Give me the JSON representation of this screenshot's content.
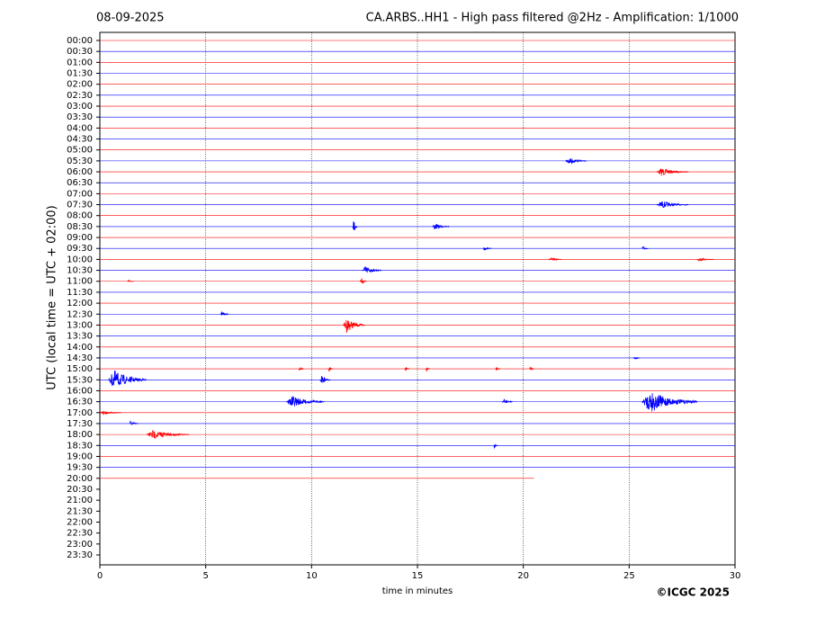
{
  "chart_data": {
    "type": "helicorder",
    "date": "08-09-2025",
    "title": "CA.ARBS..HH1 - High pass filtered @2Hz - Amplification: 1/1000",
    "ylabel": "UTC (local time = UTC + 02:00)",
    "xlabel": "time in minutes",
    "copyright": "©ICGC 2025",
    "rows": [
      "00:00",
      "00:30",
      "01:00",
      "01:30",
      "02:00",
      "02:30",
      "03:00",
      "03:30",
      "04:00",
      "04:30",
      "05:00",
      "05:30",
      "06:00",
      "06:30",
      "07:00",
      "07:30",
      "08:00",
      "08:30",
      "09:00",
      "09:30",
      "10:00",
      "10:30",
      "11:00",
      "11:30",
      "12:00",
      "12:30",
      "13:00",
      "13:30",
      "14:00",
      "14:30",
      "15:00",
      "15:30",
      "16:00",
      "16:30",
      "17:00",
      "17:30",
      "18:00",
      "18:30",
      "19:00",
      "19:30",
      "20:00",
      "20:30",
      "21:00",
      "21:30",
      "22:00",
      "22:30",
      "23:00",
      "23:30"
    ],
    "colors": [
      "#ff0000",
      "#0000ff"
    ],
    "xlim": [
      0,
      30
    ],
    "xticks": [
      0,
      5,
      10,
      15,
      20,
      25,
      30
    ],
    "grid": true,
    "data_end": {
      "row": 40,
      "x": 20.5
    },
    "events": [
      {
        "row": 11,
        "x_start": 22.0,
        "x_end": 23.0,
        "amplitude": 0.3
      },
      {
        "row": 12,
        "x_start": 26.3,
        "x_end": 27.8,
        "amplitude": 0.3
      },
      {
        "row": 15,
        "x_start": 26.3,
        "x_end": 27.8,
        "amplitude": 0.3
      },
      {
        "row": 17,
        "x_start": 11.95,
        "x_end": 12.15,
        "amplitude": 0.7
      },
      {
        "row": 17,
        "x_start": 15.7,
        "x_end": 16.5,
        "amplitude": 0.25
      },
      {
        "row": 19,
        "x_start": 18.1,
        "x_end": 18.5,
        "amplitude": 0.15
      },
      {
        "row": 19,
        "x_start": 25.6,
        "x_end": 25.9,
        "amplitude": 0.2
      },
      {
        "row": 20,
        "x_start": 21.2,
        "x_end": 21.8,
        "amplitude": 0.15
      },
      {
        "row": 20,
        "x_start": 28.2,
        "x_end": 29.0,
        "amplitude": 0.15
      },
      {
        "row": 21,
        "x_start": 12.4,
        "x_end": 13.3,
        "amplitude": 0.35
      },
      {
        "row": 22,
        "x_start": 12.3,
        "x_end": 12.6,
        "amplitude": 0.3
      },
      {
        "row": 22,
        "x_start": 1.3,
        "x_end": 1.6,
        "amplitude": 0.15
      },
      {
        "row": 25,
        "x_start": 5.7,
        "x_end": 6.1,
        "amplitude": 0.2
      },
      {
        "row": 26,
        "x_start": 11.5,
        "x_end": 12.5,
        "amplitude": 0.6
      },
      {
        "row": 29,
        "x_start": 25.2,
        "x_end": 25.5,
        "amplitude": 0.15
      },
      {
        "row": 30,
        "x_start": 9.4,
        "x_end": 9.6,
        "amplitude": 0.2
      },
      {
        "row": 30,
        "x_start": 10.8,
        "x_end": 11.0,
        "amplitude": 0.2
      },
      {
        "row": 30,
        "x_start": 14.4,
        "x_end": 14.6,
        "amplitude": 0.25
      },
      {
        "row": 30,
        "x_start": 15.4,
        "x_end": 15.6,
        "amplitude": 0.2
      },
      {
        "row": 30,
        "x_start": 18.7,
        "x_end": 18.9,
        "amplitude": 0.15
      },
      {
        "row": 30,
        "x_start": 20.3,
        "x_end": 20.5,
        "amplitude": 0.15
      },
      {
        "row": 31,
        "x_start": 0.4,
        "x_end": 2.2,
        "amplitude": 0.75
      },
      {
        "row": 31,
        "x_start": 10.4,
        "x_end": 10.9,
        "amplitude": 0.35
      },
      {
        "row": 33,
        "x_start": 8.8,
        "x_end": 10.6,
        "amplitude": 0.45
      },
      {
        "row": 33,
        "x_start": 19.0,
        "x_end": 19.5,
        "amplitude": 0.25
      },
      {
        "row": 33,
        "x_start": 25.6,
        "x_end": 28.2,
        "amplitude": 0.85
      },
      {
        "row": 34,
        "x_start": 0.0,
        "x_end": 1.0,
        "amplitude": 0.15
      },
      {
        "row": 35,
        "x_start": 1.4,
        "x_end": 1.8,
        "amplitude": 0.25
      },
      {
        "row": 36,
        "x_start": 2.2,
        "x_end": 4.2,
        "amplitude": 0.35
      },
      {
        "row": 37,
        "x_start": 18.6,
        "x_end": 18.8,
        "amplitude": 0.2
      }
    ]
  }
}
